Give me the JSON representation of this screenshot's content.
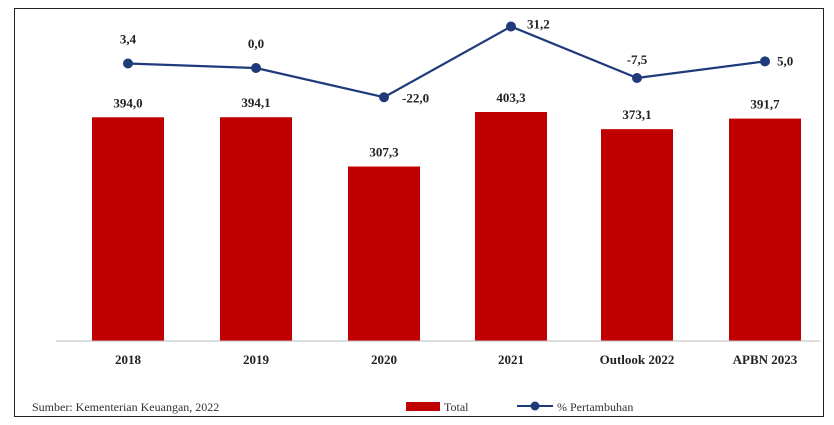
{
  "chart_data": {
    "type": "bar",
    "categories": [
      "2018",
      "2019",
      "2020",
      "2021",
      "Outlook 2022",
      "APBN 2023"
    ],
    "series": [
      {
        "name": "Total",
        "type": "bar",
        "values": [
          394.0,
          394.1,
          307.3,
          403.3,
          373.1,
          391.7
        ],
        "labels": [
          "394,0",
          "394,1",
          "307,3",
          "403,3",
          "373,1",
          "391,7"
        ],
        "color": "#C00000"
      },
      {
        "name": "% Pertambuhan",
        "type": "line",
        "values": [
          3.4,
          0.0,
          -22.0,
          31.2,
          -7.5,
          5.0
        ],
        "labels": [
          "3,4",
          "0,0",
          "-22,0",
          "31,2",
          "-7,5",
          "5,0"
        ],
        "color": "#1F3A7A"
      }
    ],
    "source": "Sumber: Kementerian Keuangan, 2022",
    "legend_position": "bottom",
    "grid": false
  }
}
